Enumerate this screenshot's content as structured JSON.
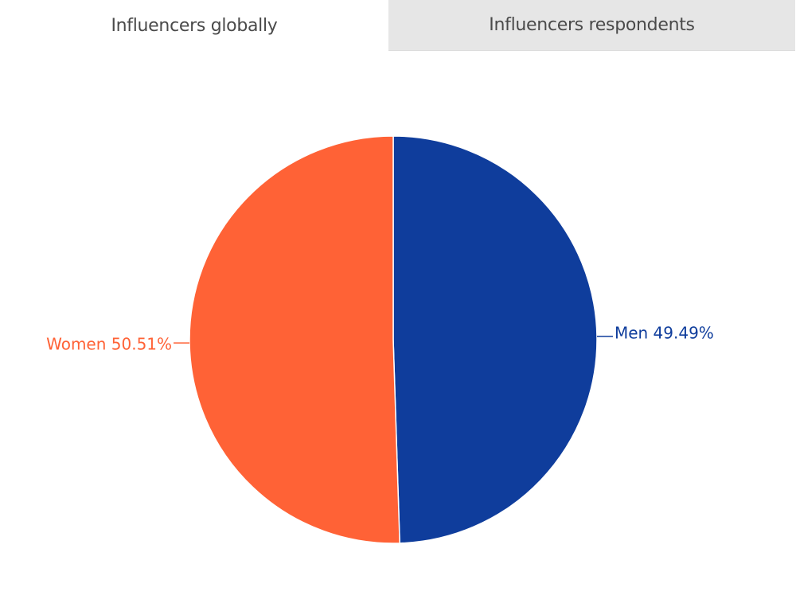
{
  "tabs": [
    {
      "label": "Influencers globally",
      "active": true
    },
    {
      "label": "Influencers respondents",
      "active": false
    }
  ],
  "chart_data": {
    "type": "pie",
    "title": "",
    "categories": [
      "Men",
      "Women"
    ],
    "values": [
      49.49,
      50.51
    ],
    "labels": [
      "Men 49.49%",
      "Women 50.51%"
    ],
    "colors": [
      "#0f3d9c",
      "#ff6236"
    ],
    "start": "12 o'clock",
    "direction": "clockwise",
    "legend": "none"
  }
}
